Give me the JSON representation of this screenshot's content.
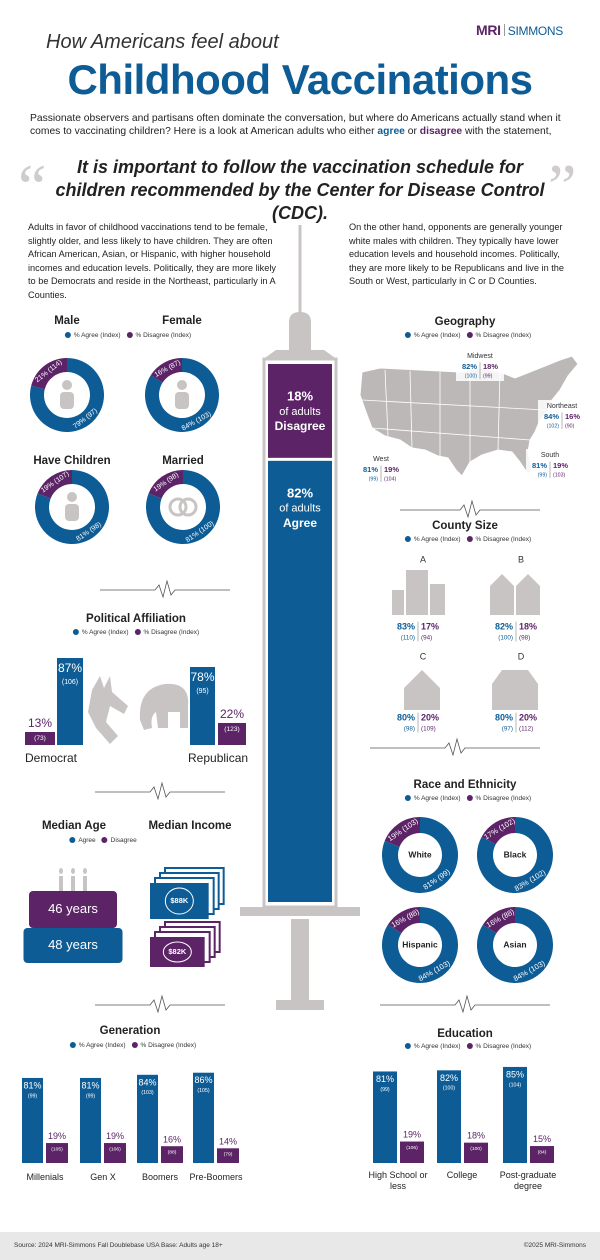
{
  "colors": {
    "agree": "#0d5c95",
    "disagree": "#5c2467"
  },
  "brand": {
    "left": "MRI",
    "right": "SIMMONS"
  },
  "header": {
    "kicker": "How Americans feel about",
    "title": "Childhood Vaccinations",
    "intro": [
      "Passionate observers and partisans often dominate the conversation, but where do Americans actually stand when it comes to vaccinating children?  Here is a look at American adults who either ",
      "agree",
      " or ",
      "disagree",
      " with the statement,"
    ],
    "open_quote": "“",
    "quote": "It is important to follow the vaccination schedule for children recommended by the Center for Disease Control (CDC).",
    "close_quote": "”"
  },
  "left_text": "Adults in favor of childhood vaccinations tend to be female, slightly older, and less likely to have children. They are often African American, Asian, or Hispanic, with higher household incomes and education levels. Politically, they are more likely to be Democrats and reside in the Northeast, particularly in A Counties.",
  "right_text": "On the other hand, opponents are generally younger white males with children. They typically have lower education levels and household incomes. Politically, they are more likely to be Republicans and live in the South or West, particularly in C or D Counties.",
  "syringe": {
    "type": "bar",
    "segments": [
      {
        "name": "Disagree",
        "value": 18,
        "label": "18%",
        "text": "of adults"
      },
      {
        "name": "Agree",
        "value": 82,
        "label": "82%",
        "text": "of adults"
      }
    ]
  },
  "demographics": {
    "type": "donut",
    "legend": [
      "% Agree (Index)",
      "% Disagree (Index)"
    ],
    "donuts": [
      {
        "name": "Male",
        "values": [
          79,
          21
        ],
        "value_labels": [
          "79% (97)",
          "21% (114)"
        ]
      },
      {
        "name": "Female",
        "values": [
          84,
          16
        ],
        "value_labels": [
          "84% (103)",
          "16% (87)"
        ]
      },
      {
        "name": "Have Children",
        "values": [
          81,
          19
        ],
        "value_labels": [
          "81% (98)",
          "19% (107)"
        ]
      },
      {
        "name": "Married",
        "values": [
          81,
          19
        ],
        "value_labels": [
          "81% (100)",
          "19% (98)"
        ]
      }
    ]
  },
  "political": {
    "type": "bar",
    "title": "Political Affiliation",
    "legend": [
      "% Agree (Index)",
      "% Disagree (Index)"
    ],
    "parties": [
      {
        "name": "Democrat",
        "values": [
          87,
          13
        ],
        "value_labels": [
          "87%",
          "13%"
        ],
        "index_labels": [
          "(106)",
          "(73)"
        ]
      },
      {
        "name": "Republican",
        "values": [
          78,
          22
        ],
        "value_labels": [
          "78%",
          "22%"
        ],
        "index_labels": [
          "(95)",
          "(123)"
        ]
      }
    ]
  },
  "median": {
    "legend": [
      "Agree",
      "Disagree"
    ],
    "age": {
      "title": "Median Age",
      "values": [
        48,
        46
      ],
      "value_labels": [
        "48 years",
        "46 years"
      ]
    },
    "income": {
      "title": "Median Income",
      "values": [
        88000,
        82000
      ],
      "value_labels": [
        "$88K",
        "$82K"
      ]
    }
  },
  "generation": {
    "type": "bar",
    "title": "Generation",
    "legend": [
      "% Agree (Index)",
      "% Disagree (Index)"
    ],
    "groups": [
      {
        "name": "Millenials",
        "values": [
          81,
          19
        ],
        "value_labels": [
          "81%",
          "19%"
        ],
        "index_labels": [
          "(99)",
          "(105)"
        ]
      },
      {
        "name": "Gen X",
        "values": [
          81,
          19
        ],
        "value_labels": [
          "81%",
          "19%"
        ],
        "index_labels": [
          "(99)",
          "(106)"
        ]
      },
      {
        "name": "Boomers",
        "values": [
          84,
          16
        ],
        "value_labels": [
          "84%",
          "16%"
        ],
        "index_labels": [
          "(103)",
          "(88)"
        ]
      },
      {
        "name": "Pre-Boomers",
        "values": [
          86,
          14
        ],
        "value_labels": [
          "86%",
          "14%"
        ],
        "index_labels": [
          "(105)",
          "(79)"
        ]
      }
    ]
  },
  "geography": {
    "title": "Geography",
    "legend": [
      "% Agree (Index)",
      "% Disagree (Index)"
    ],
    "regions": [
      {
        "name": "Midwest",
        "labels": [
          "82%",
          "18%"
        ],
        "index_labels": [
          "(100)",
          "(99)"
        ]
      },
      {
        "name": "Northeast",
        "labels": [
          "84%",
          "16%"
        ],
        "index_labels": [
          "(102)",
          "(90)"
        ]
      },
      {
        "name": "West",
        "labels": [
          "81%",
          "19%"
        ],
        "index_labels": [
          "(99)",
          "(104)"
        ]
      },
      {
        "name": "South",
        "labels": [
          "81%",
          "19%"
        ],
        "index_labels": [
          "(99)",
          "(103)"
        ]
      }
    ]
  },
  "county": {
    "title": "County Size",
    "legend": [
      "% Agree (Index)",
      "% Disagree (Index)"
    ],
    "items": [
      {
        "name": "A",
        "labels": [
          "83%",
          "17%"
        ],
        "index_labels": [
          "(110)",
          "(94)"
        ]
      },
      {
        "name": "B",
        "labels": [
          "82%",
          "18%"
        ],
        "index_labels": [
          "(100)",
          "(98)"
        ]
      },
      {
        "name": "C",
        "labels": [
          "80%",
          "20%"
        ],
        "index_labels": [
          "(98)",
          "(109)"
        ]
      },
      {
        "name": "D",
        "labels": [
          "80%",
          "20%"
        ],
        "index_labels": [
          "(97)",
          "(112)"
        ]
      }
    ]
  },
  "race": {
    "type": "donut",
    "title": "Race and Ethnicity",
    "legend": [
      "% Agree (Index)",
      "% Disagree (Index)"
    ],
    "donuts": [
      {
        "name": "White",
        "values": [
          81,
          19
        ],
        "value_labels": [
          "81% (99)",
          "19% (103)"
        ]
      },
      {
        "name": "Black",
        "values": [
          83,
          17
        ],
        "value_labels": [
          "83% (102)",
          "17% (102)"
        ]
      },
      {
        "name": "Hispanic",
        "values": [
          84,
          16
        ],
        "value_labels": [
          "84% (103)",
          "16% (88)"
        ]
      },
      {
        "name": "Asian",
        "values": [
          84,
          16
        ],
        "value_labels": [
          "84% (103)",
          "16% (88)"
        ]
      }
    ]
  },
  "education": {
    "type": "bar",
    "title": "Education",
    "legend": [
      "% Agree (Index)",
      "% Disagree (Index)"
    ],
    "groups": [
      {
        "name": "High School or less",
        "values": [
          81,
          19
        ],
        "value_labels": [
          "81%",
          "19%"
        ],
        "index_labels": [
          "(99)",
          "(106)"
        ]
      },
      {
        "name": "College",
        "values": [
          82,
          18
        ],
        "value_labels": [
          "82%",
          "18%"
        ],
        "index_labels": [
          "(100)",
          "(100)"
        ]
      },
      {
        "name": "Post-graduate degree",
        "values": [
          85,
          15
        ],
        "value_labels": [
          "85%",
          "15%"
        ],
        "index_labels": [
          "(104)",
          "(84)"
        ]
      }
    ]
  },
  "footer": {
    "source": "Source: 2024 MRI-Simmons Fall Doublebase USA Base: Adults age 18+",
    "copyright": "©2025 MRI-Simmons"
  }
}
